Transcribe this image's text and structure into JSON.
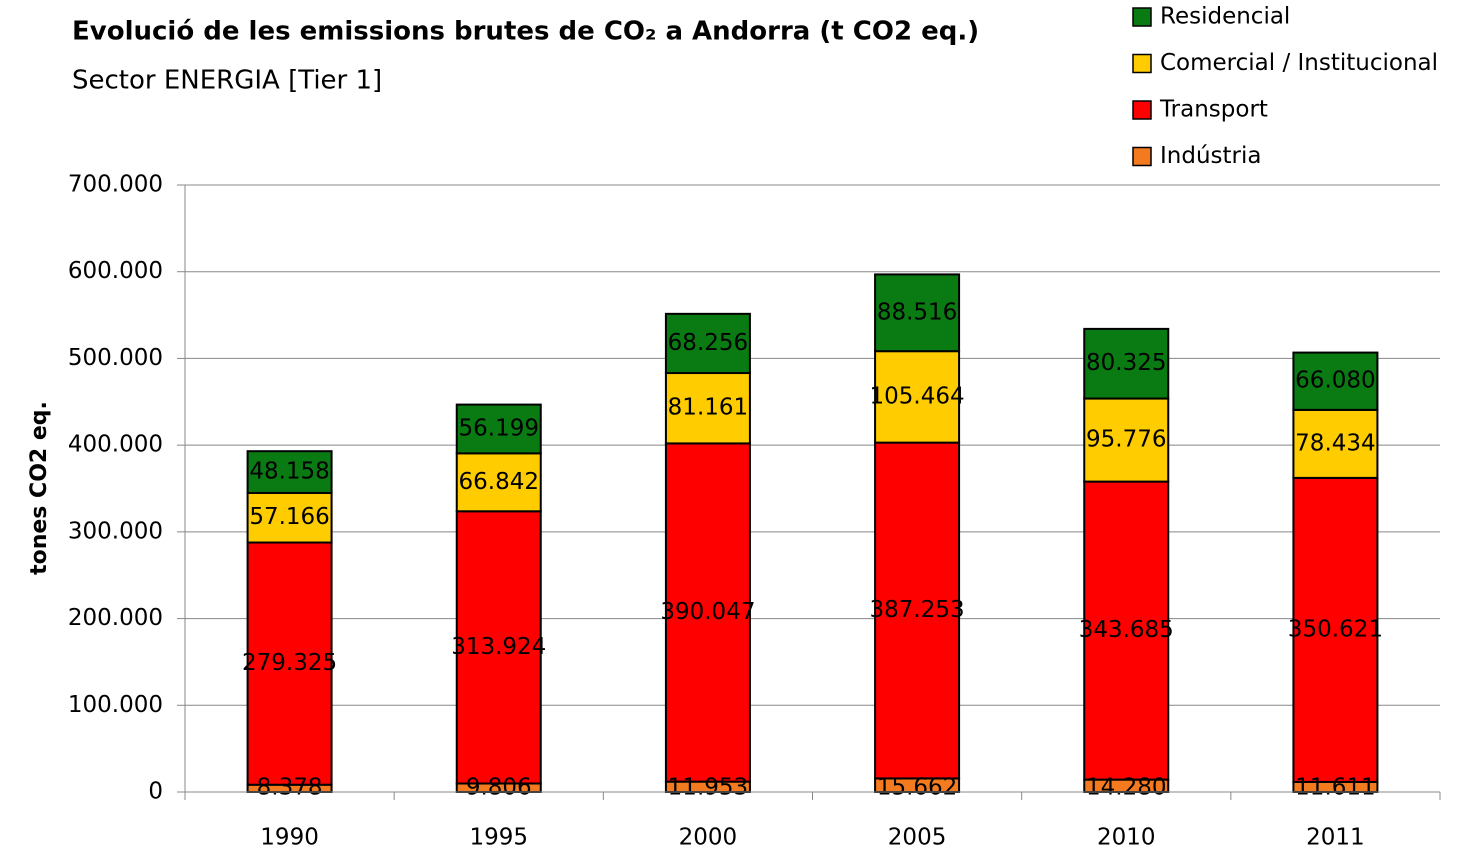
{
  "chart_data": {
    "type": "stacked_bar",
    "title": "Evolució de les emissions brutes de CO₂  a Andorra (t CO2 eq.)",
    "subtitle": "Sector ENERGIA [Tier 1]",
    "y_label": "tones CO2 eq.",
    "categories": [
      "1990",
      "1995",
      "2000",
      "2005",
      "2010",
      "2011"
    ],
    "series": [
      {
        "name": "Indústria",
        "color": "#f47a20",
        "values": [
          8378,
          9806,
          11953,
          15662,
          14280,
          11611
        ],
        "value_labels": [
          "8.378",
          "9.806",
          "11.953",
          "15.662",
          "14.280",
          "11.611"
        ]
      },
      {
        "name": "Transport",
        "color": "#ff0000",
        "values": [
          279325,
          313924,
          390047,
          387253,
          343685,
          350621
        ],
        "value_labels": [
          "279.325",
          "313.924",
          "390.047",
          "387.253",
          "343.685",
          "350.621"
        ]
      },
      {
        "name": "Comercial / Institucional",
        "color": "#ffcc00",
        "values": [
          57166,
          66842,
          81161,
          105464,
          95776,
          78434
        ],
        "value_labels": [
          "57.166",
          "66.842",
          "81.161",
          "105.464",
          "95.776",
          "78.434"
        ]
      },
      {
        "name": "Residencial",
        "color": "#0a7a12",
        "values": [
          48158,
          56199,
          68256,
          88516,
          80325,
          66080
        ],
        "value_labels": [
          "48.158",
          "56.199",
          "68.256",
          "88.516",
          "80.325",
          "66.080"
        ]
      }
    ],
    "ylim": [
      0,
      700000
    ],
    "yticks": [
      0,
      {
        "value": 100000,
        "label": "100.000"
      },
      {
        "value": 200000,
        "label": "200.000"
      },
      {
        "value": 300000,
        "label": "300.000"
      },
      {
        "value": 400000,
        "label": "400.000"
      },
      {
        "value": 500000,
        "label": "500.000"
      },
      {
        "value": 600000,
        "label": "600.000"
      },
      {
        "value": 700000,
        "label": "700.000"
      }
    ],
    "grid": true,
    "legend": "top-right"
  }
}
